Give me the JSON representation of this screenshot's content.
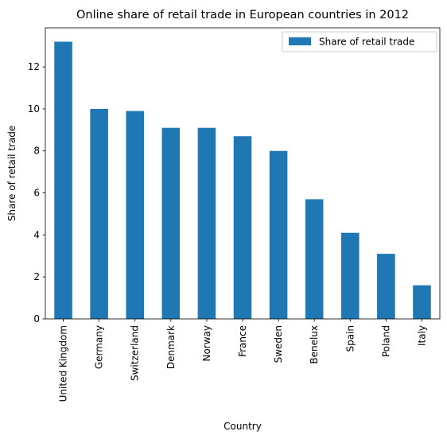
{
  "chart_data": {
    "type": "bar",
    "title": "Online share of retail trade in European countries in 2012",
    "xlabel": "Country",
    "ylabel": "Share of retail trade",
    "categories": [
      "United Kingdom",
      "Germany",
      "Switzerland",
      "Denmark",
      "Norway",
      "France",
      "Sweden",
      "Benelux",
      "Spain",
      "Poland",
      "Italy"
    ],
    "series": [
      {
        "name": "Share of retail trade",
        "values": [
          13.2,
          10.0,
          9.9,
          9.1,
          9.1,
          8.7,
          8.0,
          5.7,
          4.1,
          3.1,
          1.6
        ],
        "color": "#1f77b4"
      }
    ],
    "ylim": [
      0,
      13.86
    ],
    "yticks": [
      0,
      2,
      4,
      6,
      8,
      10,
      12
    ],
    "grid": false,
    "legend": "top-right"
  }
}
